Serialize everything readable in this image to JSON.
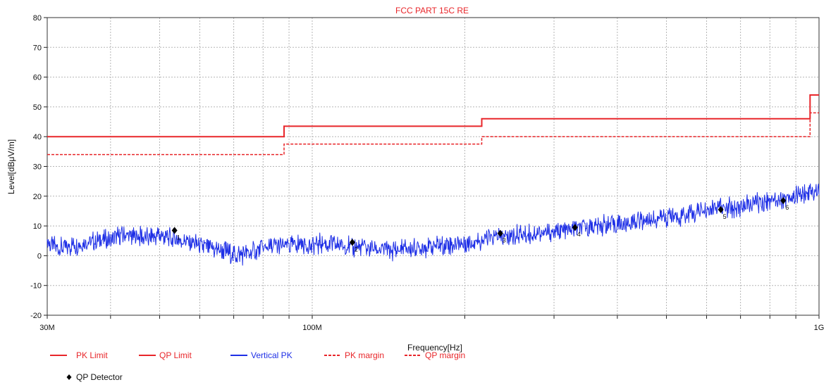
{
  "chart_data": {
    "type": "line",
    "title": "FCC PART 15C RE",
    "xlabel": "Frequency[Hz]",
    "ylabel": "Level[dBμV/m]",
    "x_scale": "log",
    "xlim": [
      30000000,
      1000000000
    ],
    "ylim": [
      -20,
      80
    ],
    "grid": true,
    "y_ticks": [
      80,
      70,
      60,
      50,
      40,
      30,
      20,
      10,
      0,
      -10,
      -20
    ],
    "y_tick_labels": [
      "80",
      "70",
      "60",
      "50",
      "40",
      "30",
      "20",
      "10",
      "0",
      "-10",
      "-20"
    ],
    "x_ticks": [
      {
        "value": 30000000,
        "label": "30M"
      },
      {
        "value": 100000000,
        "label": "100M"
      },
      {
        "value": 1000000000,
        "label": "1G"
      }
    ],
    "colors": {
      "limit": "#e8262a",
      "trace": "#1e2fe6",
      "detector": "#000000",
      "title": "#e8262a"
    },
    "series": [
      {
        "name": "PK Limit",
        "style": "solid",
        "color": "#e8262a",
        "points": [
          [
            30000000,
            40
          ],
          [
            88000000,
            40
          ],
          [
            88000000,
            43.5
          ],
          [
            216000000,
            43.5
          ],
          [
            216000000,
            46
          ],
          [
            960000000,
            46
          ],
          [
            960000000,
            54
          ],
          [
            1000000000,
            54
          ]
        ]
      },
      {
        "name": "QP Limit",
        "style": "solid",
        "color": "#e8262a",
        "points": []
      },
      {
        "name": "Vertical PK",
        "style": "solid",
        "color": "#1e2fe6",
        "points": [
          [
            30000000,
            4
          ],
          [
            32000000,
            3
          ],
          [
            34000000,
            3.5
          ],
          [
            36000000,
            4.5
          ],
          [
            38000000,
            5
          ],
          [
            40000000,
            5.5
          ],
          [
            42000000,
            6.5
          ],
          [
            45000000,
            6.5
          ],
          [
            48000000,
            6
          ],
          [
            50000000,
            7
          ],
          [
            52000000,
            6
          ],
          [
            55000000,
            5
          ],
          [
            58000000,
            4.5
          ],
          [
            60000000,
            3.5
          ],
          [
            63000000,
            2.5
          ],
          [
            66000000,
            2
          ],
          [
            70000000,
            0.5
          ],
          [
            73000000,
            0.5
          ],
          [
            76000000,
            1
          ],
          [
            80000000,
            2.5
          ],
          [
            85000000,
            3
          ],
          [
            90000000,
            3.5
          ],
          [
            95000000,
            4
          ],
          [
            100000000,
            3.5
          ],
          [
            105000000,
            4
          ],
          [
            110000000,
            4
          ],
          [
            115000000,
            3.5
          ],
          [
            120000000,
            3
          ],
          [
            130000000,
            2.5
          ],
          [
            140000000,
            2
          ],
          [
            150000000,
            2
          ],
          [
            160000000,
            2.5
          ],
          [
            170000000,
            3
          ],
          [
            180000000,
            3.5
          ],
          [
            200000000,
            4.5
          ],
          [
            220000000,
            5.5
          ],
          [
            240000000,
            6.5
          ],
          [
            260000000,
            7
          ],
          [
            280000000,
            7.5
          ],
          [
            300000000,
            8
          ],
          [
            330000000,
            9
          ],
          [
            360000000,
            10
          ],
          [
            400000000,
            10.5
          ],
          [
            450000000,
            12
          ],
          [
            500000000,
            13
          ],
          [
            550000000,
            14
          ],
          [
            600000000,
            15
          ],
          [
            650000000,
            16
          ],
          [
            700000000,
            16.5
          ],
          [
            750000000,
            17.5
          ],
          [
            800000000,
            18.5
          ],
          [
            850000000,
            19.5
          ],
          [
            900000000,
            20
          ],
          [
            950000000,
            21
          ],
          [
            1000000000,
            21.5
          ]
        ]
      },
      {
        "name": "PK margin",
        "style": "dashed",
        "color": "#e8262a",
        "points": [
          [
            30000000,
            34
          ],
          [
            88000000,
            34
          ],
          [
            88000000,
            37.5
          ],
          [
            216000000,
            37.5
          ],
          [
            216000000,
            40
          ],
          [
            960000000,
            40
          ],
          [
            960000000,
            48
          ],
          [
            1000000000,
            48
          ]
        ]
      },
      {
        "name": "QP margin",
        "style": "dashed",
        "color": "#e8262a",
        "points": []
      },
      {
        "name": "QP Detector",
        "style": "marker",
        "color": "#000000",
        "points": [
          [
            53500000,
            8.5,
            "1"
          ],
          [
            120000000,
            4.5,
            "2"
          ],
          [
            235000000,
            7.5,
            "3"
          ],
          [
            330000000,
            9.5,
            "4"
          ],
          [
            640000000,
            15.5,
            "5"
          ],
          [
            850000000,
            18.5,
            "6"
          ]
        ]
      }
    ],
    "legend": {
      "placement": "bottom-left",
      "row1": [
        {
          "label": "PK Limit",
          "color": "#e8262a",
          "style": "solid"
        },
        {
          "label": "QP Limit",
          "color": "#e8262a",
          "style": "solid"
        },
        {
          "label": "Vertical PK",
          "color": "#1e2fe6",
          "style": "solid"
        },
        {
          "label": "PK margin",
          "color": "#e8262a",
          "style": "dashed"
        },
        {
          "label": "QP margin",
          "color": "#e8262a",
          "style": "dashed"
        }
      ],
      "row2": [
        {
          "label": "QP Detector",
          "color": "#000000",
          "style": "diamond"
        }
      ]
    }
  }
}
